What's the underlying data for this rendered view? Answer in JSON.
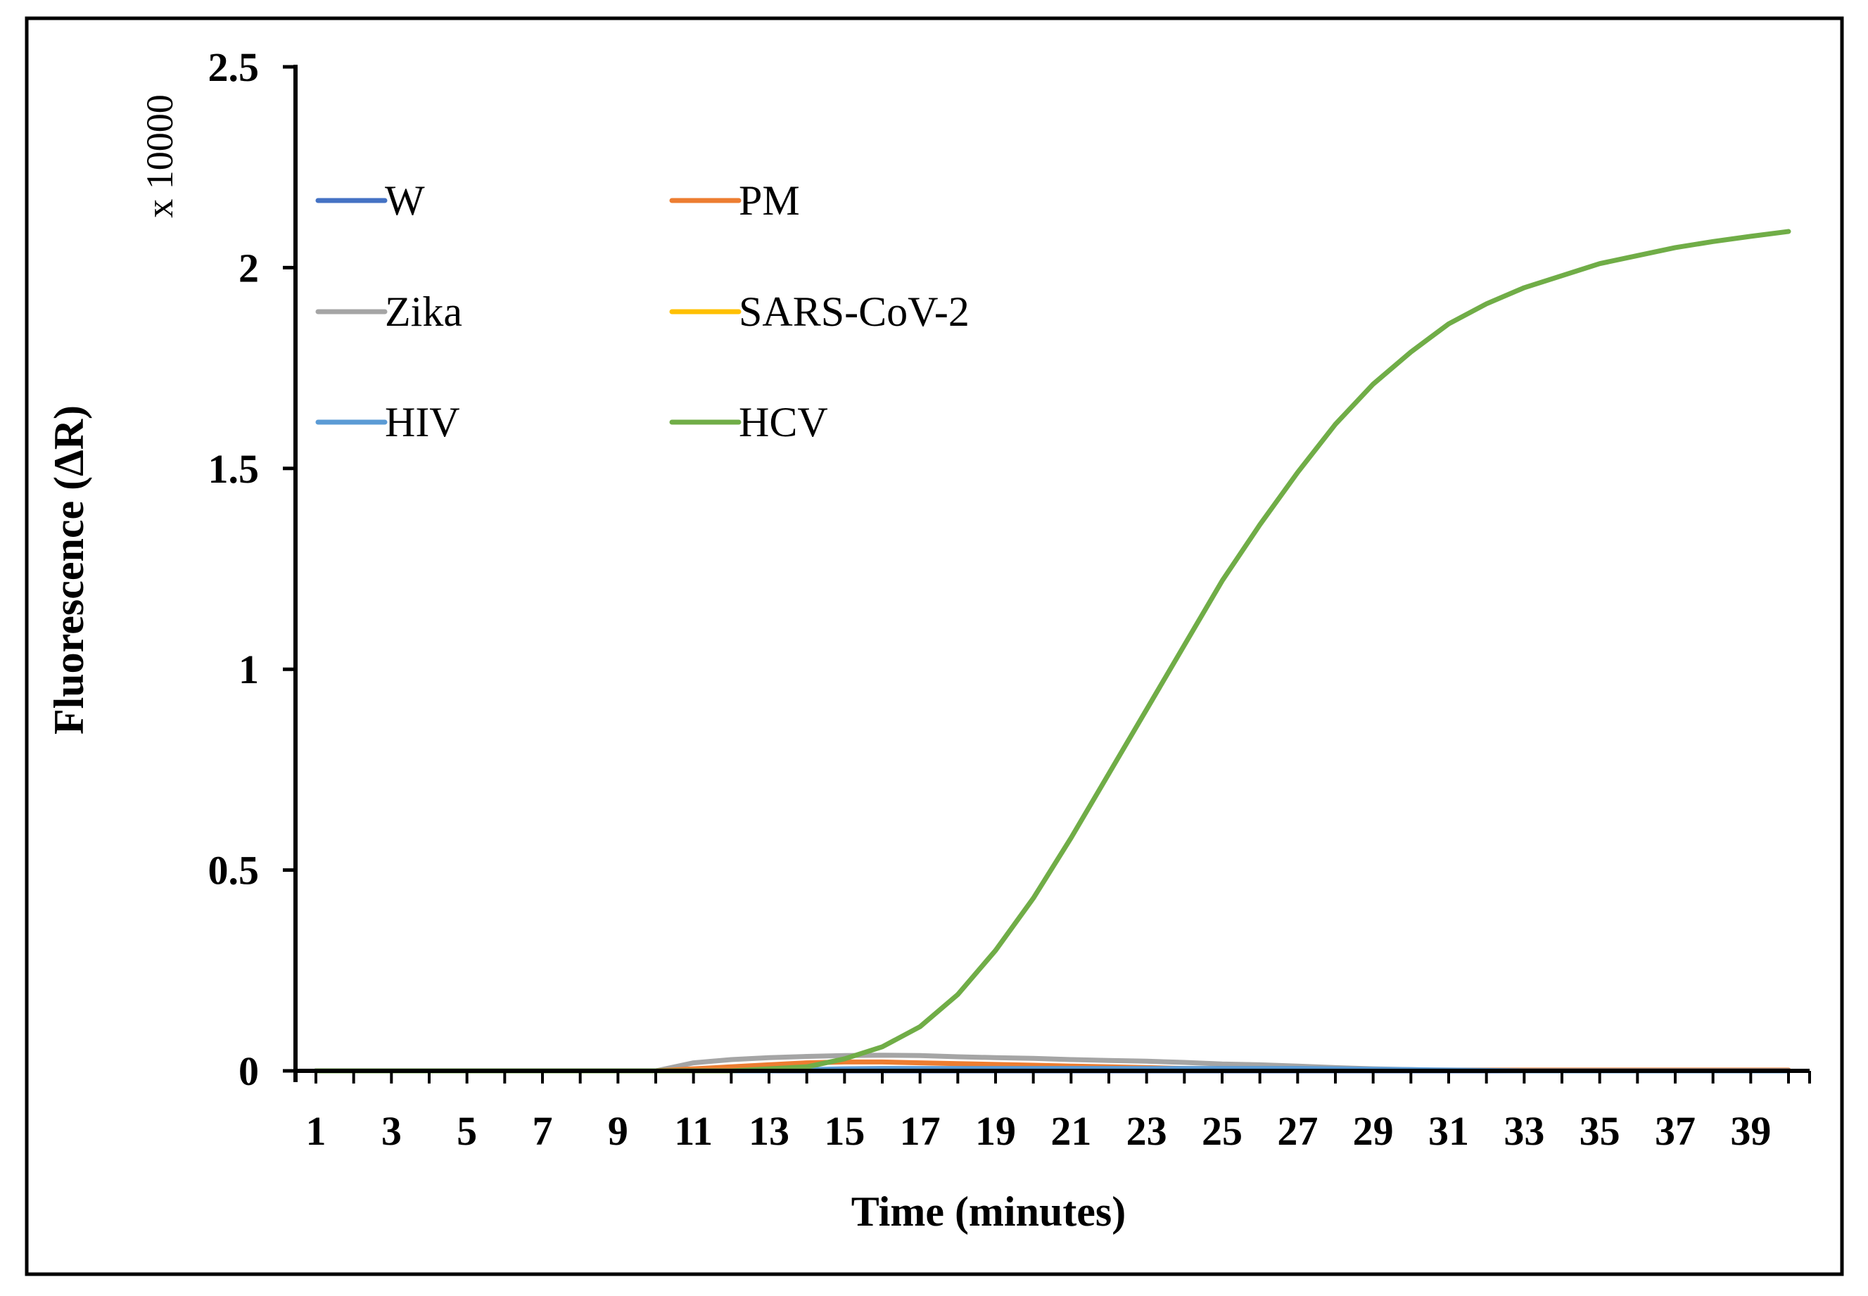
{
  "chart_data": {
    "type": "line",
    "title": "",
    "xlabel": "Time (minutes)",
    "ylabel": "Fluorescence (ΔR)",
    "y_scale_label": "x 10000",
    "ylim": [
      0,
      2.5
    ],
    "xlim": [
      1,
      40
    ],
    "x": [
      1,
      2,
      3,
      4,
      5,
      6,
      7,
      8,
      9,
      10,
      11,
      12,
      13,
      14,
      15,
      16,
      17,
      18,
      19,
      20,
      21,
      22,
      23,
      24,
      25,
      26,
      27,
      28,
      29,
      30,
      31,
      32,
      33,
      34,
      35,
      36,
      37,
      38,
      39,
      40
    ],
    "x_tick_labels": [
      "1",
      "3",
      "5",
      "7",
      "9",
      "11",
      "13",
      "15",
      "17",
      "19",
      "21",
      "23",
      "25",
      "27",
      "29",
      "31",
      "33",
      "35",
      "37",
      "39"
    ],
    "y_tick_labels": [
      "0",
      "0.5",
      "1",
      "1.5",
      "2",
      "2.5"
    ],
    "y_ticks": [
      0,
      0.5,
      1,
      1.5,
      2,
      2.5
    ],
    "legend_position": "top-left",
    "series": [
      {
        "name": "W",
        "color": "#4472C4",
        "values": [
          0,
          0,
          0,
          0,
          0,
          0,
          0,
          0,
          0,
          0,
          0,
          0,
          0,
          0,
          0,
          0,
          0,
          0,
          0,
          0,
          0,
          0,
          0,
          0,
          0,
          0,
          0,
          0,
          0,
          0,
          0,
          0,
          0,
          0,
          0,
          0,
          0,
          0,
          0,
          0
        ]
      },
      {
        "name": "PM",
        "color": "#ED7D31",
        "values": [
          0,
          0,
          0,
          0,
          0,
          0,
          0,
          0,
          0,
          0,
          0.005,
          0.01,
          0.015,
          0.02,
          0.022,
          0.022,
          0.02,
          0.018,
          0.016,
          0.014,
          0.012,
          0.01,
          0.008,
          0.006,
          0.005,
          0.004,
          0.003,
          0.002,
          0.002,
          0.002,
          0.002,
          0.002,
          0.002,
          0.002,
          0.002,
          0.002,
          0.002,
          0.002,
          0.002,
          0.002
        ]
      },
      {
        "name": "Zika",
        "color": "#A5A5A5",
        "values": [
          0,
          0,
          0,
          0,
          0,
          0,
          0,
          0,
          0,
          0,
          0.02,
          0.028,
          0.033,
          0.036,
          0.038,
          0.039,
          0.038,
          0.035,
          0.033,
          0.031,
          0.028,
          0.026,
          0.024,
          0.021,
          0.017,
          0.015,
          0.012,
          0.008,
          0.005,
          0.003,
          0.001,
          0,
          0,
          0,
          0,
          0,
          0,
          0,
          0,
          0
        ]
      },
      {
        "name": "SARS-CoV-2",
        "color": "#FFC000",
        "values": [
          0,
          0,
          0,
          0,
          0,
          0,
          0,
          0,
          0,
          0,
          0,
          0,
          0,
          0,
          0,
          0,
          0,
          0,
          0,
          0,
          0,
          0,
          0,
          0,
          0,
          0,
          0,
          0,
          0,
          0,
          0,
          0,
          0,
          0,
          0,
          0,
          0,
          0,
          0,
          0
        ]
      },
      {
        "name": "HIV",
        "color": "#5B9BD5",
        "values": [
          0,
          0,
          0,
          0,
          0,
          0,
          0,
          0,
          0,
          0,
          0,
          0,
          0,
          0.003,
          0.005,
          0.006,
          0.006,
          0.006,
          0.006,
          0.006,
          0.006,
          0.006,
          0.006,
          0.006,
          0.006,
          0.006,
          0.006,
          0.005,
          0.004,
          0.003,
          0.002,
          0.001,
          0,
          0,
          0,
          0,
          0,
          0,
          0,
          0
        ]
      },
      {
        "name": "HCV",
        "color": "#70AD47",
        "values": [
          0,
          0,
          0,
          0,
          0,
          0,
          0,
          0,
          0,
          0,
          0,
          0,
          0.005,
          0.01,
          0.03,
          0.06,
          0.11,
          0.19,
          0.3,
          0.43,
          0.58,
          0.74,
          0.9,
          1.06,
          1.22,
          1.36,
          1.49,
          1.61,
          1.71,
          1.79,
          1.86,
          1.91,
          1.95,
          1.98,
          2.01,
          2.03,
          2.05,
          2.065,
          2.078,
          2.09
        ]
      }
    ]
  }
}
